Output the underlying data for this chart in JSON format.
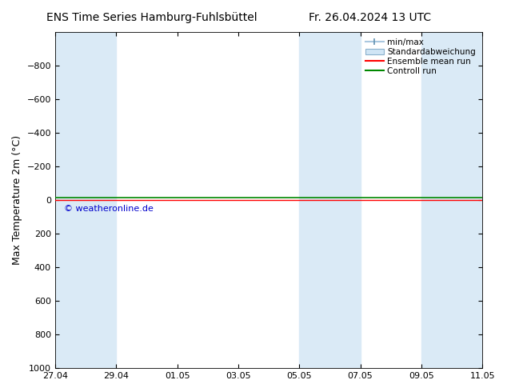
{
  "title_left": "ENS Time Series Hamburg-Fuhlsbüttel",
  "title_right": "Fr. 26.04.2024 13 UTC",
  "ylabel": "Max Temperature 2m (°C)",
  "ylim_top": -1000,
  "ylim_bottom": 1000,
  "yticks": [
    -800,
    -600,
    -400,
    -200,
    0,
    200,
    400,
    600,
    800,
    1000
  ],
  "xtick_labels": [
    "27.04",
    "29.04",
    "01.05",
    "03.05",
    "05.05",
    "07.05",
    "09.05",
    "11.05"
  ],
  "xtick_positions": [
    0,
    2,
    4,
    6,
    8,
    10,
    12,
    14
  ],
  "shade_bands": [
    [
      0,
      1
    ],
    [
      1,
      2
    ],
    [
      8,
      9
    ],
    [
      9,
      10
    ],
    [
      12,
      13
    ],
    [
      13,
      14
    ]
  ],
  "shade_color": "#daeaf6",
  "bg_color": "#ffffff",
  "control_run_color": "#008800",
  "ensemble_mean_color": "#ff0000",
  "watermark": "© weatheronline.de",
  "watermark_color": "#0000cc",
  "figsize": [
    6.34,
    4.9
  ],
  "dpi": 100,
  "title_fontsize": 10,
  "tick_labelsize": 8,
  "ylabel_fontsize": 9
}
